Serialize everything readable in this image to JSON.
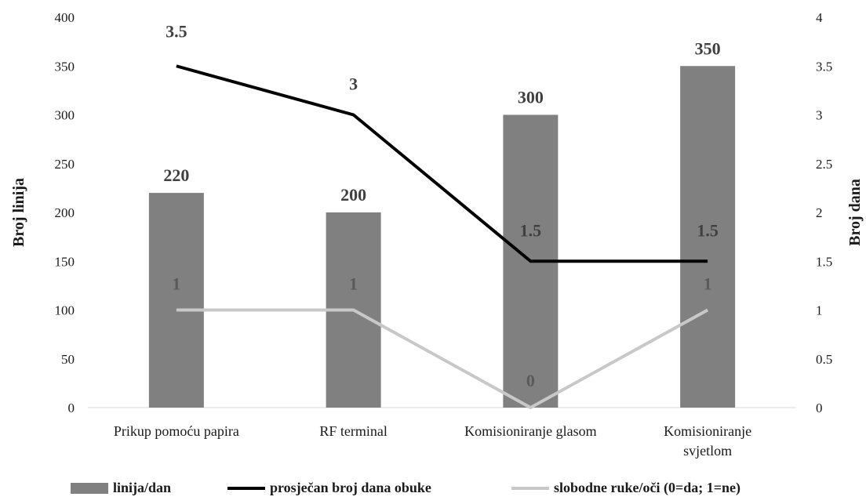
{
  "chart_data": {
    "type": "bar",
    "categories": [
      [
        "Prikup pomoću papira"
      ],
      [
        "RF terminal"
      ],
      [
        "Komisioniranje glasom"
      ],
      [
        "Komisioniranje",
        "svjetlom"
      ]
    ],
    "y_left": {
      "label": "Broj linija",
      "range": [
        0,
        400
      ],
      "ticks": [
        "0",
        "50",
        "100",
        "150",
        "200",
        "250",
        "300",
        "350",
        "400"
      ]
    },
    "y_right": {
      "label": "Broj dana",
      "range": [
        0,
        4
      ],
      "ticks": [
        "0",
        "0.5",
        "1",
        "1.5",
        "2",
        "2.5",
        "3",
        "3.5",
        "4"
      ]
    },
    "grid": false,
    "legend_position": "bottom",
    "series": [
      {
        "name": "linija/dan",
        "type": "bar",
        "axis": "left",
        "color": "#808080",
        "values": [
          220,
          200,
          300,
          350
        ],
        "labels": [
          "220",
          "200",
          "300",
          "350"
        ]
      },
      {
        "name": "prosječan broj dana obuke",
        "type": "line",
        "axis": "right",
        "color": "#000000",
        "values": [
          3.5,
          3,
          1.5,
          1.5
        ],
        "labels": [
          "3.5",
          "3",
          "1.5",
          "1.5"
        ]
      },
      {
        "name": "slobodne ruke/oči (0=da; 1=ne)",
        "type": "line",
        "axis": "right",
        "color": "#c8c8c8",
        "values": [
          1,
          1,
          0,
          1
        ],
        "labels": [
          "1",
          "1",
          "0",
          "1"
        ]
      }
    ]
  }
}
